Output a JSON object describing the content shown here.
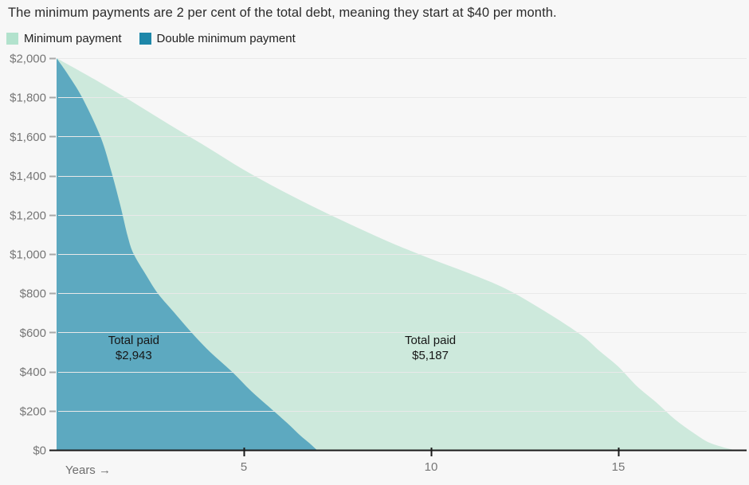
{
  "title": "The minimum payments are 2 per cent of the total debt, meaning they start at $40 per month.",
  "legend": {
    "items": [
      {
        "label": "Minimum payment",
        "color": "#b2e2cd"
      },
      {
        "label": "Double minimum payment",
        "color": "#1e87a9"
      }
    ]
  },
  "chart_data": {
    "type": "area",
    "xlabel": "Years →",
    "ylabel": "",
    "xlim": [
      0,
      18.4
    ],
    "ylim": [
      0,
      2000
    ],
    "x_ticks": [
      5,
      10,
      15
    ],
    "y_ticks": [
      {
        "value": 0,
        "label": "$0"
      },
      {
        "value": 200,
        "label": "$200"
      },
      {
        "value": 400,
        "label": "$400"
      },
      {
        "value": 600,
        "label": "$600"
      },
      {
        "value": 800,
        "label": "$800"
      },
      {
        "value": 1000,
        "label": "$1,000"
      },
      {
        "value": 1200,
        "label": "$1,200"
      },
      {
        "value": 1400,
        "label": "$1,400"
      },
      {
        "value": 1600,
        "label": "$1,600"
      },
      {
        "value": 1800,
        "label": "$1,800"
      },
      {
        "value": 2000,
        "label": "$2,000"
      }
    ],
    "grid": true,
    "legend_position": "top-left",
    "x_unit": "years",
    "y_unit": "remaining debt balance ($)",
    "series": [
      {
        "name": "Minimum payment",
        "legend_color": "#b2e2cd",
        "fill_color": "#cde9dc",
        "total_paid": "$5,187",
        "payoff_years": 18.1,
        "annotation": {
          "lines": [
            "Total paid",
            "$5,187"
          ],
          "at_year": 9.98,
          "at_value": 520
        },
        "points_year_balance": [
          [
            0,
            2000
          ],
          [
            1,
            1893
          ],
          [
            2,
            1780
          ],
          [
            3,
            1662
          ],
          [
            4,
            1548
          ],
          [
            5,
            1430
          ],
          [
            6,
            1325
          ],
          [
            7,
            1228
          ],
          [
            8,
            1138
          ],
          [
            9,
            1052
          ],
          [
            10,
            975
          ],
          [
            11,
            903
          ],
          [
            12,
            822
          ],
          [
            13,
            712
          ],
          [
            14,
            588
          ],
          [
            14.5,
            505
          ],
          [
            15,
            425
          ],
          [
            15.5,
            325
          ],
          [
            16,
            245
          ],
          [
            16.5,
            158
          ],
          [
            17,
            88
          ],
          [
            17.4,
            40
          ],
          [
            17.8,
            14
          ],
          [
            18.1,
            0
          ]
        ]
      },
      {
        "name": "Double minimum payment",
        "legend_color": "#1e87a9",
        "fill_color": "#5da9c0",
        "total_paid": "$2,943",
        "payoff_years": 6.95,
        "annotation": {
          "lines": [
            "Total paid",
            "$2,943"
          ],
          "at_year": 2.06,
          "at_value": 520
        },
        "points_year_balance": [
          [
            0,
            2000
          ],
          [
            0.3,
            1918
          ],
          [
            0.68,
            1800
          ],
          [
            1.17,
            1600
          ],
          [
            1.45,
            1430
          ],
          [
            1.7,
            1250
          ],
          [
            1.9,
            1090
          ],
          [
            2.06,
            1000
          ],
          [
            2.4,
            890
          ],
          [
            2.7,
            800
          ],
          [
            3.1,
            710
          ],
          [
            3.6,
            600
          ],
          [
            4.1,
            500
          ],
          [
            4.68,
            400
          ],
          [
            5.2,
            300
          ],
          [
            5.79,
            200
          ],
          [
            6.2,
            130
          ],
          [
            6.5,
            75
          ],
          [
            6.75,
            35
          ],
          [
            6.95,
            0
          ]
        ]
      }
    ]
  }
}
